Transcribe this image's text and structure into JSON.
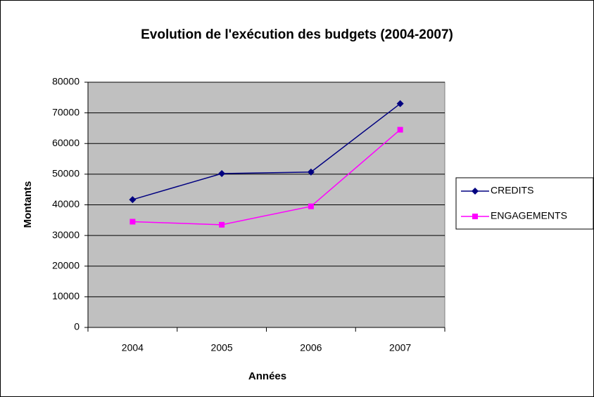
{
  "chart_data": {
    "type": "line",
    "title": "Evolution de l'exécution des budgets (2004-2007)",
    "x_label": "Années",
    "y_label": "Montants",
    "categories": [
      "2004",
      "2005",
      "2006",
      "2007"
    ],
    "series": [
      {
        "name": "CREDITS",
        "color": "#000080",
        "marker": "diamond",
        "values": [
          41700,
          50200,
          50700,
          73000
        ]
      },
      {
        "name": "ENGAGEMENTS",
        "color": "#ff00ff",
        "marker": "square",
        "values": [
          34500,
          33500,
          39500,
          64500
        ]
      }
    ],
    "ylim": [
      0,
      80000
    ],
    "yticks": [
      0,
      10000,
      20000,
      30000,
      40000,
      50000,
      60000,
      70000,
      80000
    ],
    "grid": true,
    "legend": "right"
  }
}
